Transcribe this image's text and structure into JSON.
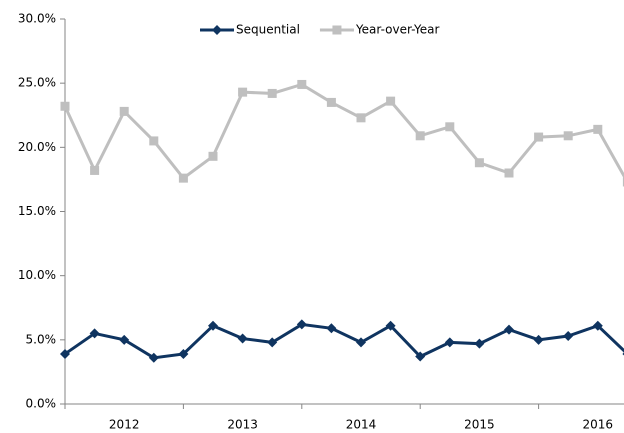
{
  "chart_data": {
    "type": "line",
    "x_labels": [
      "2012",
      "2013",
      "2014",
      "2015",
      "2016"
    ],
    "series": [
      {
        "name": "Sequential",
        "color": "#0f3460",
        "marker": "diamond",
        "values": [
          3.9,
          5.5,
          5.0,
          3.6,
          3.9,
          6.1,
          5.1,
          4.8,
          6.2,
          5.9,
          4.8,
          6.1,
          3.7,
          4.8,
          4.7,
          5.8,
          5.0,
          5.3,
          6.1,
          3.9
        ]
      },
      {
        "name": "Year-over-Year",
        "color": "#bfbfbf",
        "marker": "square",
        "values": [
          23.2,
          18.2,
          22.8,
          20.5,
          17.6,
          19.3,
          24.3,
          24.2,
          24.9,
          23.5,
          22.3,
          23.6,
          20.9,
          21.6,
          18.8,
          18.0,
          20.8,
          20.9,
          21.4,
          17.3
        ]
      }
    ],
    "ylim": [
      0,
      30
    ],
    "yticks": [
      {
        "value": 0,
        "label": "0.0%"
      },
      {
        "value": 5,
        "label": "5.0%"
      },
      {
        "value": 10,
        "label": "10.0%"
      },
      {
        "value": 15,
        "label": "15.0%"
      },
      {
        "value": 20,
        "label": "20.0%"
      },
      {
        "value": 25,
        "label": "25.0%"
      },
      {
        "value": 30,
        "label": "30.0%"
      }
    ],
    "grid": false,
    "legend": "top"
  }
}
